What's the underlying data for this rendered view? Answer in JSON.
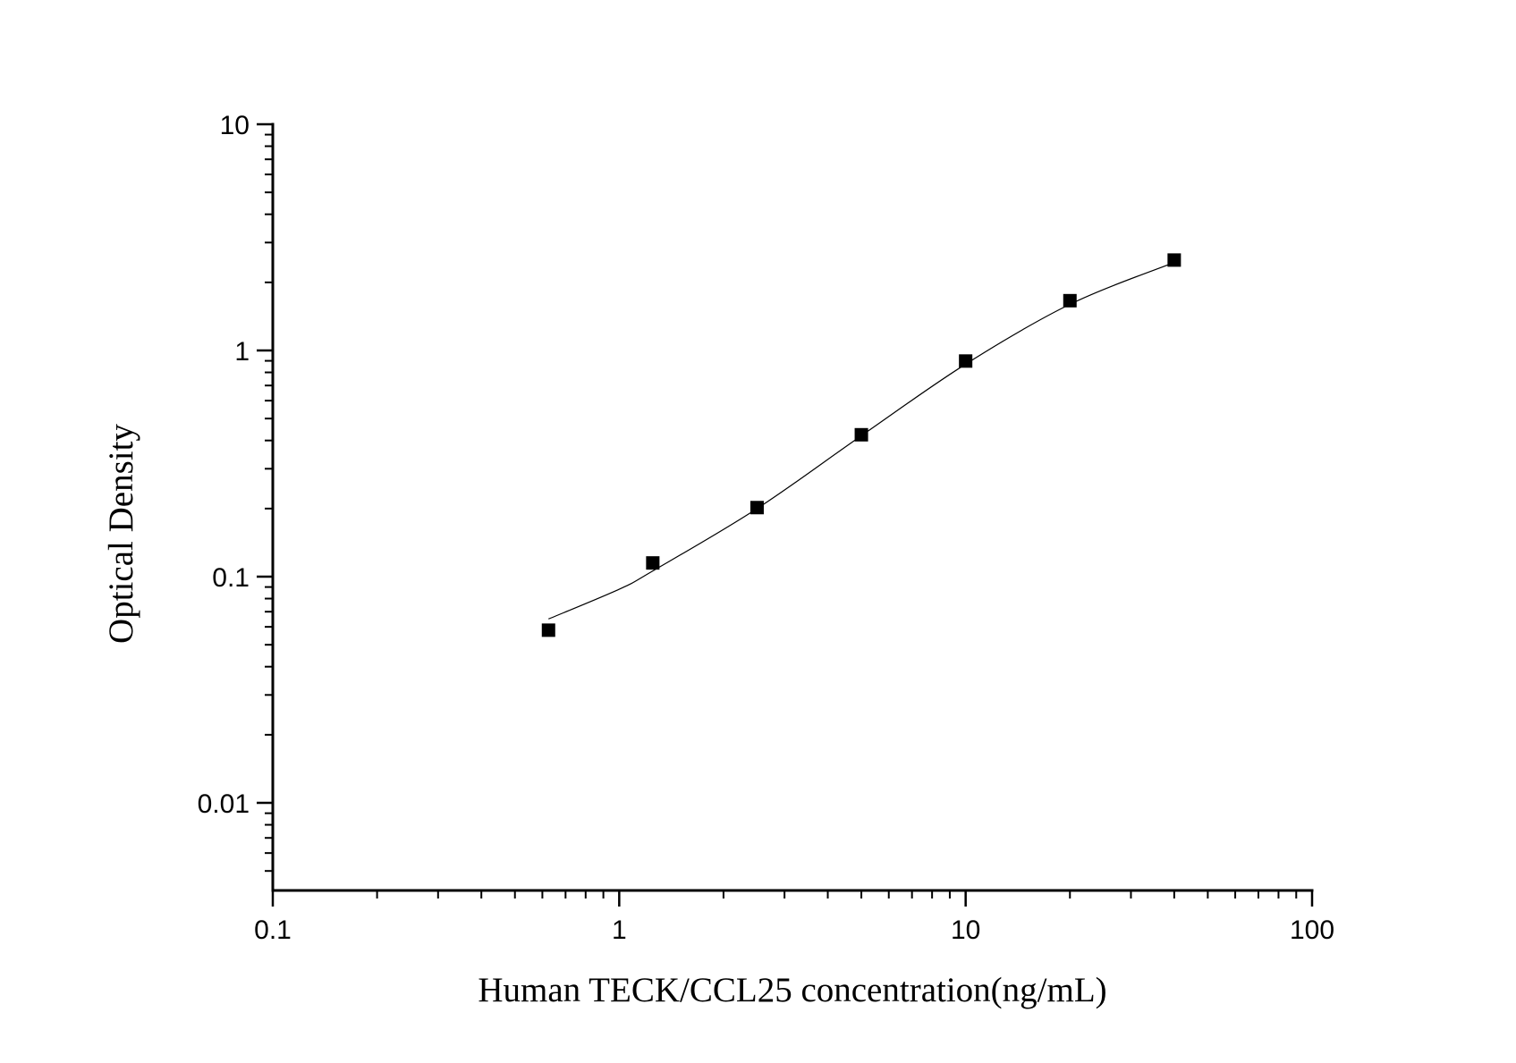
{
  "chart_data": {
    "type": "scatter",
    "title": "",
    "xlabel": "Human TECK/CCL25 concentration(ng/mL)",
    "ylabel": "Optical Density",
    "x_scale": "log",
    "y_scale": "log",
    "xlim": [
      0.1,
      100
    ],
    "ylim": [
      0.0041,
      10
    ],
    "x_ticks": [
      "0.1",
      "1",
      "10",
      "100"
    ],
    "y_ticks": [
      "10",
      "1",
      "0.1",
      "0.01"
    ],
    "grid": false,
    "legend": "none",
    "marker_color": "#000000",
    "points": {
      "x": [
        0.625,
        1.25,
        2.5,
        5,
        10,
        20,
        40
      ],
      "y": [
        0.058,
        0.115,
        0.202,
        0.424,
        0.898,
        1.66,
        2.51
      ]
    },
    "fit_curve": {
      "x": [
        0.625,
        1,
        1.25,
        2.5,
        5,
        10,
        20,
        40
      ],
      "y": [
        0.065,
        0.088,
        0.106,
        0.2,
        0.42,
        0.87,
        1.6,
        2.45
      ]
    }
  }
}
